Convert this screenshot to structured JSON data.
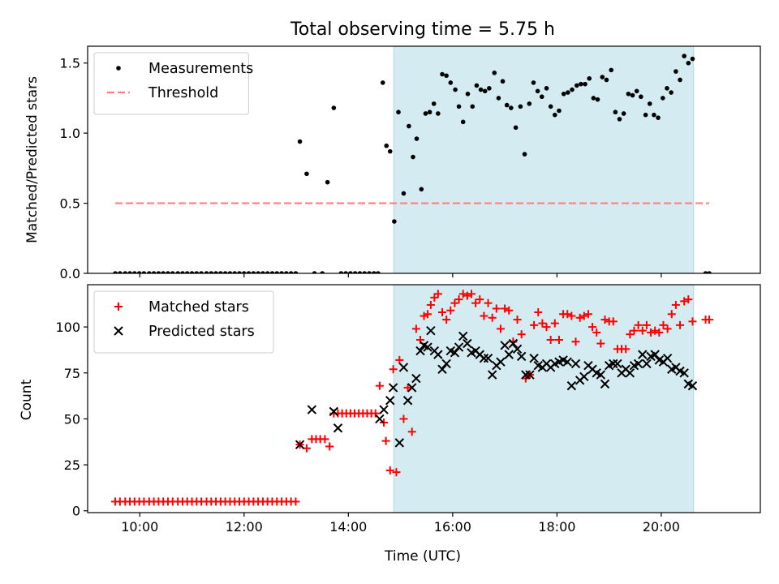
{
  "title": "Total observing time = 5.75 h",
  "chart_data": [
    {
      "type": "scatter",
      "ylabel": "Matched/Predicted stars",
      "xlim": [
        9.0,
        21.9
      ],
      "ylim": [
        0,
        1.62
      ],
      "yticks": [
        "0.0",
        "0.5",
        "1.0",
        "1.5"
      ],
      "grid": false,
      "legend": "top-left",
      "shaded_region": {
        "x": [
          14.87,
          20.62
        ],
        "color": "#add8e6"
      },
      "series": [
        {
          "name": "Measurements",
          "color": "#000000",
          "marker": "dot",
          "x": [
            9.53,
            9.62,
            9.72,
            9.81,
            9.9,
            9.99,
            10.08,
            10.18,
            10.27,
            10.36,
            10.45,
            10.54,
            10.63,
            10.73,
            10.82,
            10.91,
            11.0,
            11.09,
            11.18,
            11.28,
            11.37,
            11.46,
            11.55,
            11.64,
            11.73,
            11.82,
            11.91,
            12.0,
            12.09,
            12.18,
            12.27,
            12.36,
            12.45,
            12.54,
            12.63,
            12.72,
            12.81,
            12.9,
            12.99,
            13.07,
            13.2,
            13.35,
            13.5,
            13.6,
            13.72,
            13.86,
            13.95,
            14.04,
            14.13,
            14.22,
            14.31,
            14.4,
            14.49,
            14.57,
            14.66,
            14.73,
            14.8,
            14.88,
            14.96,
            15.06,
            15.16,
            15.24,
            15.31,
            15.4,
            15.48,
            15.56,
            15.64,
            15.72,
            15.8,
            15.88,
            15.96,
            16.05,
            16.12,
            16.2,
            16.29,
            16.38,
            16.46,
            16.54,
            16.62,
            16.7,
            16.8,
            16.88,
            16.96,
            17.04,
            17.12,
            17.21,
            17.3,
            17.38,
            17.47,
            17.55,
            17.63,
            17.71,
            17.8,
            17.88,
            17.96,
            18.04,
            18.13,
            18.21,
            18.29,
            18.38,
            18.46,
            18.54,
            18.62,
            18.7,
            18.78,
            18.87,
            18.95,
            19.04,
            19.12,
            19.2,
            19.28,
            19.37,
            19.45,
            19.53,
            19.61,
            19.7,
            19.78,
            19.86,
            19.94,
            20.03,
            20.11,
            20.19,
            20.28,
            20.36,
            20.44,
            20.52,
            20.6,
            20.85,
            20.92
          ],
          "y": [
            0,
            0,
            0,
            0,
            0,
            0,
            0,
            0,
            0,
            0,
            0,
            0,
            0,
            0,
            0,
            0,
            0,
            0,
            0,
            0,
            0,
            0,
            0,
            0,
            0,
            0,
            0,
            0,
            0,
            0,
            0,
            0,
            0,
            0,
            0,
            0,
            0,
            0,
            0,
            0.94,
            0.71,
            0,
            0,
            0.65,
            1.18,
            0,
            0,
            0,
            0,
            0,
            0,
            0,
            0,
            0,
            1.36,
            0.91,
            0.87,
            0.37,
            1.15,
            0.57,
            1.05,
            0.83,
            0.96,
            0.6,
            1.14,
            1.15,
            1.21,
            1.14,
            1.42,
            1.41,
            1.36,
            1.31,
            1.19,
            1.08,
            1.28,
            1.19,
            1.34,
            1.31,
            1.3,
            1.32,
            1.43,
            1.25,
            1.37,
            1.2,
            1.18,
            1.04,
            1.19,
            0.85,
            1.21,
            1.36,
            1.3,
            1.26,
            1.32,
            1.19,
            1.13,
            1.16,
            1.28,
            1.29,
            1.31,
            1.34,
            1.35,
            1.35,
            1.39,
            1.25,
            1.24,
            1.4,
            1.38,
            1.45,
            1.15,
            1.1,
            1.14,
            1.28,
            1.27,
            1.3,
            1.26,
            1.13,
            1.21,
            1.13,
            1.11,
            1.25,
            1.32,
            1.29,
            1.44,
            1.38,
            1.55,
            1.5,
            1.53,
            0,
            0
          ]
        },
        {
          "name": "Threshold",
          "color": "#ff7f7f",
          "line": "dashed",
          "x": [
            9.53,
            20.92
          ],
          "y": [
            0.5,
            0.5
          ]
        }
      ]
    },
    {
      "type": "scatter",
      "xlabel": "Time (UTC)",
      "ylabel": "Count",
      "xlim": [
        9.0,
        21.9
      ],
      "ylim": [
        -1,
        123
      ],
      "xticks": [
        {
          "v": 10,
          "label": "10:00"
        },
        {
          "v": 12,
          "label": "12:00"
        },
        {
          "v": 14,
          "label": "14:00"
        },
        {
          "v": 16,
          "label": "16:00"
        },
        {
          "v": 18,
          "label": "18:00"
        },
        {
          "v": 20,
          "label": "20:00"
        }
      ],
      "yticks": [
        "0",
        "25",
        "50",
        "75",
        "100"
      ],
      "grid": false,
      "legend": "top-left",
      "shaded_region": {
        "x": [
          14.87,
          20.62
        ],
        "color": "#add8e6"
      },
      "series": [
        {
          "name": "Matched stars",
          "color": "#ff0000",
          "marker": "plus",
          "x": [
            9.53,
            9.62,
            9.72,
            9.81,
            9.9,
            9.99,
            10.08,
            10.18,
            10.27,
            10.36,
            10.45,
            10.54,
            10.63,
            10.73,
            10.82,
            10.91,
            11.0,
            11.09,
            11.18,
            11.28,
            11.37,
            11.46,
            11.55,
            11.64,
            11.73,
            11.82,
            11.91,
            12.0,
            12.09,
            12.18,
            12.27,
            12.36,
            12.45,
            12.54,
            12.63,
            12.72,
            12.81,
            12.9,
            12.99,
            13.07,
            13.2,
            13.3,
            13.38,
            13.46,
            13.55,
            13.64,
            13.72,
            13.8,
            13.88,
            13.96,
            14.04,
            14.12,
            14.2,
            14.28,
            14.36,
            14.44,
            14.52,
            14.6,
            14.68,
            14.72,
            14.8,
            14.86,
            14.92,
            14.98,
            15.06,
            15.14,
            15.22,
            15.3,
            15.38,
            15.45,
            15.52,
            15.58,
            15.65,
            15.72,
            15.8,
            15.88,
            15.96,
            16.04,
            16.12,
            16.2,
            16.28,
            16.36,
            16.44,
            16.52,
            16.6,
            16.68,
            16.76,
            16.84,
            16.92,
            17.0,
            17.08,
            17.16,
            17.24,
            17.32,
            17.4,
            17.48,
            17.56,
            17.64,
            17.72,
            17.8,
            17.88,
            17.96,
            18.04,
            18.12,
            18.2,
            18.28,
            18.36,
            18.44,
            18.52,
            18.6,
            18.68,
            18.76,
            18.84,
            18.92,
            19.0,
            19.08,
            19.16,
            19.24,
            19.32,
            19.4,
            19.48,
            19.56,
            19.64,
            19.72,
            19.8,
            19.88,
            19.96,
            20.04,
            20.12,
            20.2,
            20.28,
            20.36,
            20.44,
            20.52,
            20.6,
            20.85,
            20.92
          ],
          "y": [
            5,
            5,
            5,
            5,
            5,
            5,
            5,
            5,
            5,
            5,
            5,
            5,
            5,
            5,
            5,
            5,
            5,
            5,
            5,
            5,
            5,
            5,
            5,
            5,
            5,
            5,
            5,
            5,
            5,
            5,
            5,
            5,
            5,
            5,
            5,
            5,
            5,
            5,
            5,
            36,
            34,
            39,
            39,
            39,
            39,
            35,
            53,
            53,
            53,
            53,
            53,
            53,
            53,
            53,
            53,
            53,
            53,
            68,
            48,
            38,
            22,
            77,
            21,
            82,
            50,
            67,
            43,
            99,
            93,
            106,
            107,
            112,
            116,
            118,
            108,
            104,
            109,
            113,
            115,
            118,
            117,
            118,
            113,
            115,
            106,
            113,
            105,
            110,
            99,
            110,
            109,
            92,
            104,
            96,
            72,
            74,
            101,
            108,
            102,
            100,
            93,
            102,
            93,
            107,
            107,
            106,
            92,
            105,
            106,
            107,
            100,
            97,
            91,
            104,
            103,
            103,
            88,
            88,
            88,
            96,
            98,
            101,
            98,
            101,
            97,
            98,
            97,
            101,
            99,
            107,
            112,
            101,
            114,
            115,
            103,
            104,
            104
          ]
        },
        {
          "name": "Predicted stars",
          "color": "#000000",
          "marker": "x",
          "x": [
            13.07,
            13.3,
            13.72,
            13.8,
            14.6,
            14.68,
            14.8,
            14.86,
            14.98,
            15.06,
            15.14,
            15.22,
            15.3,
            15.38,
            15.45,
            15.52,
            15.58,
            15.65,
            15.72,
            15.8,
            15.88,
            15.96,
            16.04,
            16.12,
            16.2,
            16.28,
            16.36,
            16.44,
            16.52,
            16.6,
            16.68,
            16.76,
            16.84,
            16.92,
            17.0,
            17.08,
            17.16,
            17.24,
            17.32,
            17.4,
            17.48,
            17.56,
            17.64,
            17.72,
            17.8,
            17.88,
            17.96,
            18.04,
            18.12,
            18.2,
            18.28,
            18.36,
            18.44,
            18.52,
            18.6,
            18.68,
            18.76,
            18.84,
            18.92,
            19.0,
            19.08,
            19.16,
            19.24,
            19.32,
            19.4,
            19.48,
            19.56,
            19.64,
            19.72,
            19.8,
            19.88,
            19.96,
            20.04,
            20.12,
            20.2,
            20.28,
            20.36,
            20.44,
            20.52,
            20.6
          ],
          "y": [
            36,
            55,
            54,
            45,
            50,
            55,
            60,
            67,
            37,
            78,
            60,
            67,
            72,
            87,
            90,
            89,
            98,
            87,
            85,
            77,
            80,
            87,
            86,
            89,
            95,
            91,
            86,
            87,
            85,
            83,
            83,
            74,
            79,
            81,
            90,
            85,
            91,
            88,
            84,
            74,
            74,
            83,
            79,
            78,
            80,
            78,
            80,
            81,
            82,
            81,
            68,
            80,
            71,
            73,
            79,
            77,
            75,
            74,
            69,
            79,
            80,
            80,
            75,
            77,
            75,
            79,
            80,
            85,
            80,
            84,
            85,
            82,
            81,
            83,
            77,
            78,
            76,
            75,
            69,
            68
          ]
        }
      ]
    }
  ]
}
